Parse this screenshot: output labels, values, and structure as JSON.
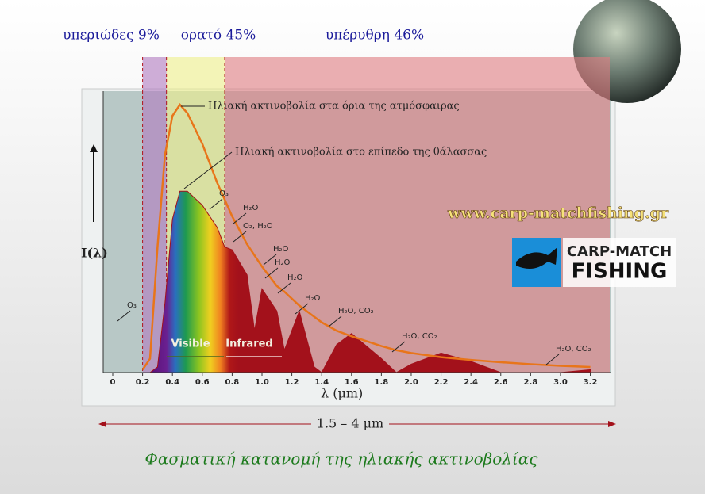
{
  "chart_data": {
    "type": "line",
    "title": "Φασματική κατανομή της ηλιακής ακτινοβολίας",
    "x_label": "λ    (μm)",
    "y_label": "I(λ)",
    "x": [
      0.2,
      0.25,
      0.3,
      0.35,
      0.4,
      0.45,
      0.5,
      0.6,
      0.7,
      0.75,
      0.8,
      0.9,
      0.95,
      1.0,
      1.1,
      1.15,
      1.25,
      1.35,
      1.4,
      1.5,
      1.6,
      1.8,
      1.9,
      2.0,
      2.2,
      2.4,
      2.6,
      2.8,
      3.0,
      3.2
    ],
    "series": [
      {
        "name": "Ηλιακή ακτινοβολία στα όρια της ατμόσφαιρας",
        "color": "#e8751a",
        "area": false,
        "values": [
          1,
          5,
          45,
          78,
          92,
          96,
          93,
          82,
          68,
          62,
          56,
          46,
          42,
          38,
          31,
          29,
          24,
          20,
          18,
          15,
          13,
          9.5,
          8,
          7,
          5.5,
          4.5,
          3.7,
          3,
          2.4,
          2
        ]
      },
      {
        "name": "Ηλιακή ακτινοβολία στο επίπεδο της θάλασσας",
        "color": "#a3111b",
        "area": true,
        "values": [
          0,
          0,
          2,
          25,
          55,
          65,
          65,
          60,
          52,
          45,
          44,
          35,
          15,
          30,
          22,
          8,
          22,
          2,
          0,
          10,
          14,
          5,
          0,
          3,
          7,
          4,
          0,
          0,
          0,
          1
        ]
      }
    ],
    "regions": [
      {
        "name": "υπεριώδες 9%",
        "color": "#b07ac0",
        "xrange": [
          0.2,
          0.36
        ]
      },
      {
        "name": "ορατό 45%",
        "color": "#eef08a",
        "xrange": [
          0.36,
          0.75
        ]
      },
      {
        "name": "υπέρυθρη 46%",
        "color": "#e07b80",
        "xrange": [
          0.75,
          3.33
        ]
      }
    ],
    "band_labels": [
      "Visible",
      "Infrared"
    ],
    "absorption_labels": [
      "O₃",
      "O₃",
      "H₂O",
      "O₂, H₂O",
      "H₂O",
      "H₂O",
      "H₂O",
      "H₂O",
      "H₂O, CO₂",
      "H₂O, CO₂",
      "H₂O, CO₂"
    ],
    "range_label": "1.5 – 4 μm",
    "xlim": [
      0,
      3.33
    ],
    "ylim": [
      0,
      100
    ],
    "xticks": [
      0,
      0.2,
      0.4,
      0.6,
      0.8,
      {
        "value": 1,
        "label": "1.0"
      },
      1.2,
      1.4,
      1.6,
      1.8,
      {
        "value": 2,
        "label": "2.0"
      },
      2.2,
      2.4,
      2.6,
      2.8,
      {
        "value": 3,
        "label": "3.0"
      },
      3.2
    ]
  },
  "watermark": {
    "url": "www.carp-matchfishing.gr",
    "logo_line1": "CARP-MATCH",
    "logo_line2": "FISHING"
  }
}
